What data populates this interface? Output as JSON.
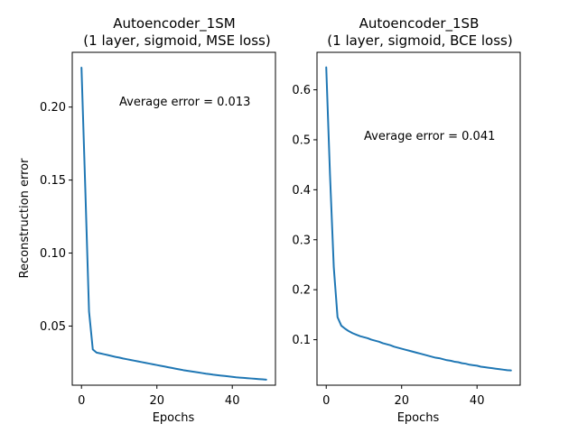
{
  "colors": {
    "series": "#1f77b4",
    "axis": "#000000",
    "background": "#ffffff"
  },
  "chart_data": [
    {
      "type": "line",
      "title_lines": [
        "Autoencoder_1SM",
        "(1 layer, sigmoid, MSE loss)"
      ],
      "xlabel": "Epochs",
      "ylabel": "Reconstruction error",
      "annotation": "Average error = 0.013",
      "xlim": [
        -2.45,
        51.45
      ],
      "ylim": [
        0.0095,
        0.2375
      ],
      "xticks": [
        0,
        20,
        40
      ],
      "xtick_labels": [
        "0",
        "20",
        "40"
      ],
      "yticks": [
        0.05,
        0.1,
        0.15,
        0.2
      ],
      "ytick_labels": [
        "0.05",
        "0.10",
        "0.15",
        "0.20"
      ],
      "grid": false,
      "legend": "none",
      "series": [
        {
          "x": [
            0,
            1,
            2,
            3,
            4,
            5,
            6,
            7,
            8,
            9,
            10,
            11,
            12,
            13,
            14,
            15,
            16,
            17,
            18,
            19,
            20,
            21,
            22,
            23,
            24,
            25,
            26,
            27,
            28,
            29,
            30,
            31,
            32,
            33,
            34,
            35,
            36,
            37,
            38,
            39,
            40,
            41,
            42,
            43,
            44,
            45,
            46,
            47,
            48,
            49
          ],
          "y": [
            0.227,
            0.145,
            0.06,
            0.034,
            0.0318,
            0.0313,
            0.0307,
            0.0301,
            0.0295,
            0.0289,
            0.0284,
            0.0278,
            0.0273,
            0.0268,
            0.0263,
            0.0258,
            0.0253,
            0.0248,
            0.0243,
            0.0238,
            0.0233,
            0.0228,
            0.0223,
            0.0218,
            0.0213,
            0.0208,
            0.0203,
            0.0198,
            0.0194,
            0.019,
            0.0186,
            0.0182,
            0.0178,
            0.0174,
            0.0171,
            0.0167,
            0.0164,
            0.0161,
            0.0158,
            0.0155,
            0.0152,
            0.0149,
            0.0147,
            0.0145,
            0.0143,
            0.0141,
            0.0139,
            0.0137,
            0.0135,
            0.0133
          ]
        }
      ]
    },
    {
      "type": "line",
      "title_lines": [
        "Autoencoder_1SB",
        "(1 layer, sigmoid, BCE loss)"
      ],
      "xlabel": "Epochs",
      "ylabel": "",
      "annotation": "Average error = 0.041",
      "xlim": [
        -2.45,
        51.45
      ],
      "ylim": [
        0.009,
        0.675
      ],
      "xticks": [
        0,
        20,
        40
      ],
      "xtick_labels": [
        "0",
        "20",
        "40"
      ],
      "yticks": [
        0.1,
        0.2,
        0.3,
        0.4,
        0.5,
        0.6
      ],
      "ytick_labels": [
        "0.1",
        "0.2",
        "0.3",
        "0.4",
        "0.5",
        "0.6"
      ],
      "grid": false,
      "legend": "none",
      "series": [
        {
          "x": [
            0,
            1,
            2,
            3,
            4,
            5,
            6,
            7,
            8,
            9,
            10,
            11,
            12,
            13,
            14,
            15,
            16,
            17,
            18,
            19,
            20,
            21,
            22,
            23,
            24,
            25,
            26,
            27,
            28,
            29,
            30,
            31,
            32,
            33,
            34,
            35,
            36,
            37,
            38,
            39,
            40,
            41,
            42,
            43,
            44,
            45,
            46,
            47,
            48,
            49
          ],
          "y": [
            0.645,
            0.43,
            0.245,
            0.145,
            0.128,
            0.122,
            0.117,
            0.113,
            0.11,
            0.107,
            0.105,
            0.103,
            0.1,
            0.098,
            0.096,
            0.093,
            0.091,
            0.089,
            0.086,
            0.084,
            0.082,
            0.08,
            0.078,
            0.076,
            0.074,
            0.072,
            0.07,
            0.068,
            0.066,
            0.064,
            0.063,
            0.061,
            0.059,
            0.058,
            0.056,
            0.055,
            0.053,
            0.052,
            0.05,
            0.049,
            0.048,
            0.046,
            0.045,
            0.044,
            0.043,
            0.042,
            0.041,
            0.04,
            0.039,
            0.0385
          ]
        }
      ]
    }
  ]
}
